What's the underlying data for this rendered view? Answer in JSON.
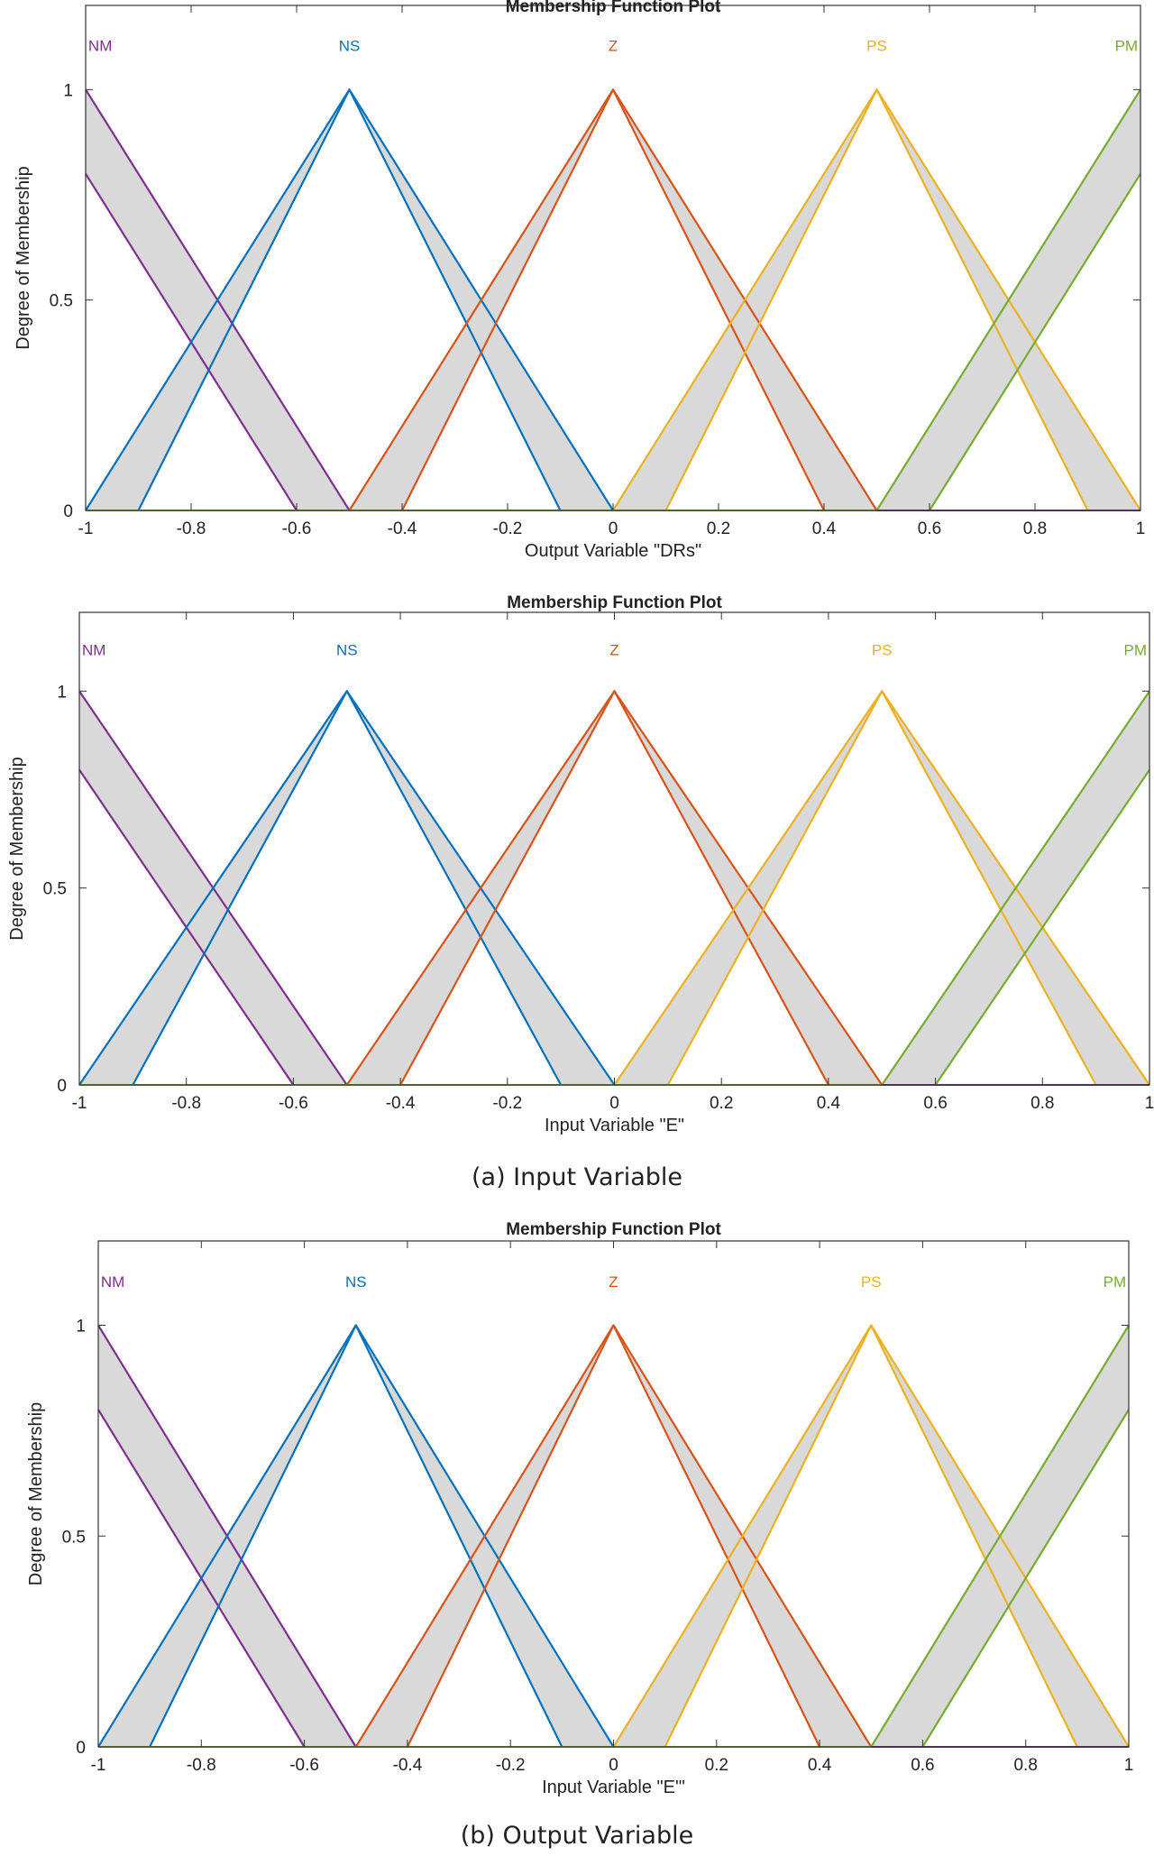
{
  "captions": {
    "a": "(a) Input Variable",
    "b": "(b) Output Variable"
  },
  "colors": {
    "NM": "#7E2F8E",
    "NS": "#0072BD",
    "Z": "#D95319",
    "PS": "#EDB120",
    "PM": "#77AC30",
    "band": "#d9d9d9"
  },
  "chart_data": [
    {
      "type": "line",
      "title": "Membership Function Plot",
      "xlabel": "Output Variable \"DRs\"",
      "ylabel": "Degree of Membership",
      "xlim": [
        -1,
        1
      ],
      "ylim": [
        0,
        1.2
      ],
      "xticks": [
        "-1",
        "-0.8",
        "-0.6",
        "-0.4",
        "-0.2",
        "0",
        "0.2",
        "0.4",
        "0.6",
        "0.8",
        "1"
      ],
      "yticks": [
        "0",
        "0.5",
        "1"
      ],
      "sets": [
        {
          "name": "NM",
          "label_x": -0.995,
          "upper": [
            [
              -1,
              1
            ],
            [
              -1,
              1
            ],
            [
              -0.5,
              0
            ]
          ],
          "lower": [
            [
              -1,
              0.8
            ],
            [
              -1,
              0.8
            ],
            [
              -0.6,
              0
            ]
          ]
        },
        {
          "name": "NS",
          "label_x": -0.5,
          "upper": [
            [
              -1,
              0
            ],
            [
              -0.5,
              1
            ],
            [
              0,
              0
            ]
          ],
          "lower": [
            [
              -0.9,
              0
            ],
            [
              -0.5,
              1
            ],
            [
              -0.1,
              0
            ]
          ]
        },
        {
          "name": "Z",
          "label_x": 0,
          "upper": [
            [
              -0.5,
              0
            ],
            [
              0,
              1
            ],
            [
              0.5,
              0
            ]
          ],
          "lower": [
            [
              -0.4,
              0
            ],
            [
              0,
              1
            ],
            [
              0.4,
              0
            ]
          ]
        },
        {
          "name": "PS",
          "label_x": 0.5,
          "upper": [
            [
              0,
              0
            ],
            [
              0.5,
              1
            ],
            [
              1,
              0
            ]
          ],
          "lower": [
            [
              0.1,
              0
            ],
            [
              0.5,
              1
            ],
            [
              0.9,
              0
            ]
          ]
        },
        {
          "name": "PM",
          "label_x": 0.995,
          "upper": [
            [
              0.5,
              0
            ],
            [
              1,
              1
            ],
            [
              1,
              1
            ]
          ],
          "lower": [
            [
              0.6,
              0
            ],
            [
              1,
              0.8
            ],
            [
              1,
              0.8
            ]
          ]
        }
      ]
    },
    {
      "type": "line",
      "title": "Membership Function Plot",
      "xlabel": "Input Variable \"E\"",
      "ylabel": "Degree of Membership",
      "xlim": [
        -1,
        1
      ],
      "ylim": [
        0,
        1.2
      ],
      "xticks": [
        "-1",
        "-0.8",
        "-0.6",
        "-0.4",
        "-0.2",
        "0",
        "0.2",
        "0.4",
        "0.6",
        "0.8",
        "1"
      ],
      "yticks": [
        "0",
        "0.5",
        "1"
      ],
      "sets": [
        {
          "name": "NM",
          "label_x": -0.995,
          "upper": [
            [
              -1,
              1
            ],
            [
              -1,
              1
            ],
            [
              -0.5,
              0
            ]
          ],
          "lower": [
            [
              -1,
              0.8
            ],
            [
              -1,
              0.8
            ],
            [
              -0.6,
              0
            ]
          ]
        },
        {
          "name": "NS",
          "label_x": -0.5,
          "upper": [
            [
              -1,
              0
            ],
            [
              -0.5,
              1
            ],
            [
              0,
              0
            ]
          ],
          "lower": [
            [
              -0.9,
              0
            ],
            [
              -0.5,
              1
            ],
            [
              -0.1,
              0
            ]
          ]
        },
        {
          "name": "Z",
          "label_x": 0,
          "upper": [
            [
              -0.5,
              0
            ],
            [
              0,
              1
            ],
            [
              0.5,
              0
            ]
          ],
          "lower": [
            [
              -0.4,
              0
            ],
            [
              0,
              1
            ],
            [
              0.4,
              0
            ]
          ]
        },
        {
          "name": "PS",
          "label_x": 0.5,
          "upper": [
            [
              0,
              0
            ],
            [
              0.5,
              1
            ],
            [
              1,
              0
            ]
          ],
          "lower": [
            [
              0.1,
              0
            ],
            [
              0.5,
              1
            ],
            [
              0.9,
              0
            ]
          ]
        },
        {
          "name": "PM",
          "label_x": 0.995,
          "upper": [
            [
              0.5,
              0
            ],
            [
              1,
              1
            ],
            [
              1,
              1
            ]
          ],
          "lower": [
            [
              0.6,
              0
            ],
            [
              1,
              0.8
            ],
            [
              1,
              0.8
            ]
          ]
        }
      ]
    },
    {
      "type": "line",
      "title": "Membership Function Plot",
      "xlabel": "Input Variable \"E'\"",
      "ylabel": "Degree of Membership",
      "xlim": [
        -1,
        1
      ],
      "ylim": [
        0,
        1.2
      ],
      "xticks": [
        "-1",
        "-0.8",
        "-0.6",
        "-0.4",
        "-0.2",
        "0",
        "0.2",
        "0.4",
        "0.6",
        "0.8",
        "1"
      ],
      "yticks": [
        "0",
        "0.5",
        "1"
      ],
      "sets": [
        {
          "name": "NM",
          "label_x": -0.995,
          "upper": [
            [
              -1,
              1
            ],
            [
              -1,
              1
            ],
            [
              -0.5,
              0
            ]
          ],
          "lower": [
            [
              -1,
              0.8
            ],
            [
              -1,
              0.8
            ],
            [
              -0.6,
              0
            ]
          ]
        },
        {
          "name": "NS",
          "label_x": -0.5,
          "upper": [
            [
              -1,
              0
            ],
            [
              -0.5,
              1
            ],
            [
              0,
              0
            ]
          ],
          "lower": [
            [
              -0.9,
              0
            ],
            [
              -0.5,
              1
            ],
            [
              -0.1,
              0
            ]
          ]
        },
        {
          "name": "Z",
          "label_x": 0,
          "upper": [
            [
              -0.5,
              0
            ],
            [
              0,
              1
            ],
            [
              0.5,
              0
            ]
          ],
          "lower": [
            [
              -0.4,
              0
            ],
            [
              0,
              1
            ],
            [
              0.4,
              0
            ]
          ]
        },
        {
          "name": "PS",
          "label_x": 0.5,
          "upper": [
            [
              0,
              0
            ],
            [
              0.5,
              1
            ],
            [
              1,
              0
            ]
          ],
          "lower": [
            [
              0.1,
              0
            ],
            [
              0.5,
              1
            ],
            [
              0.9,
              0
            ]
          ]
        },
        {
          "name": "PM",
          "label_x": 0.995,
          "upper": [
            [
              0.5,
              0
            ],
            [
              1,
              1
            ],
            [
              1,
              1
            ]
          ],
          "lower": [
            [
              0.6,
              0
            ],
            [
              1,
              0.8
            ],
            [
              1,
              0.8
            ]
          ]
        }
      ]
    }
  ]
}
